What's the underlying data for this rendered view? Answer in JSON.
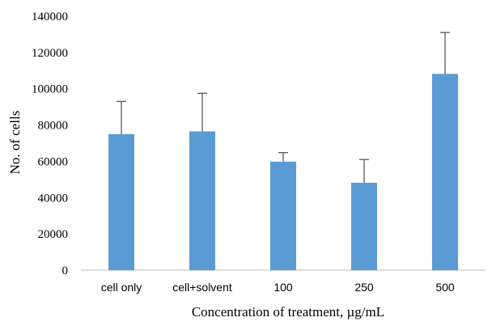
{
  "chart_data": {
    "type": "bar",
    "title": "",
    "categories": [
      "cell only",
      "cell+solvent",
      "100",
      "250",
      "500"
    ],
    "values": [
      75000,
      76500,
      59800,
      48200,
      108200
    ],
    "error_upper": [
      18000,
      21000,
      5000,
      12800,
      22800
    ],
    "xlabel": "Concentration of treatment, µg/mL",
    "ylabel": "No. of cells",
    "ylim": [
      0,
      140000
    ],
    "yticks": [
      0,
      20000,
      40000,
      60000,
      80000,
      100000,
      120000,
      140000
    ],
    "ytick_labels": [
      "0",
      "20000",
      "40000",
      "60000",
      "80000",
      "100000",
      "120000",
      "140000"
    ],
    "grid": false,
    "legend": "none",
    "colors": {
      "bar": "#5B9BD5",
      "error_bar": "#595959",
      "axis": "#bfbfbf",
      "text": "#000000"
    }
  }
}
